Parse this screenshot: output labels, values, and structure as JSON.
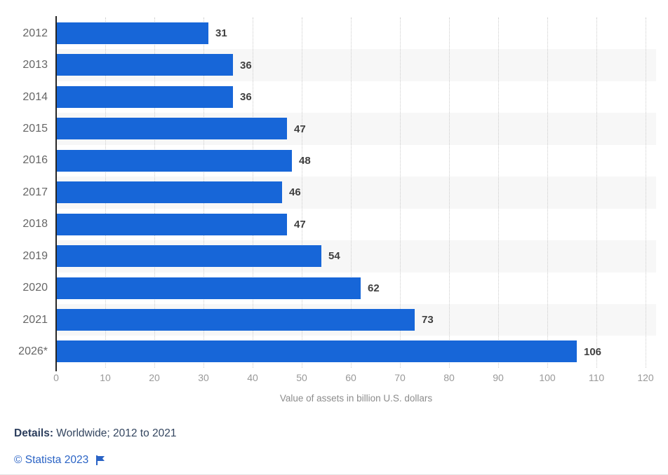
{
  "chart_data": {
    "type": "bar",
    "orientation": "horizontal",
    "categories": [
      "2012",
      "2013",
      "2014",
      "2015",
      "2016",
      "2017",
      "2018",
      "2019",
      "2020",
      "2021",
      "2026*"
    ],
    "values": [
      31,
      36,
      36,
      47,
      48,
      46,
      47,
      54,
      62,
      73,
      106
    ],
    "title": "",
    "xlabel": "Value of assets in billion U.S. dollars",
    "ylabel": "",
    "xlim": [
      0,
      120
    ],
    "xticks": [
      0,
      10,
      20,
      30,
      40,
      50,
      60,
      70,
      80,
      90,
      100,
      110,
      120
    ],
    "grid": "vertical-dotted",
    "legend": "none",
    "colors": {
      "bar": "#1766d8",
      "stripe": "#f7f7f7",
      "value_label": "#404040",
      "category_label": "#666666",
      "tick_label": "#999999",
      "axis_title": "#8c8c8c",
      "axis_line": "#262626"
    }
  },
  "footer": {
    "details_label": "Details:",
    "details_text": " Worldwide; 2012 to 2021",
    "copyright": "© Statista 2023",
    "flag_icon": "flag-icon"
  }
}
